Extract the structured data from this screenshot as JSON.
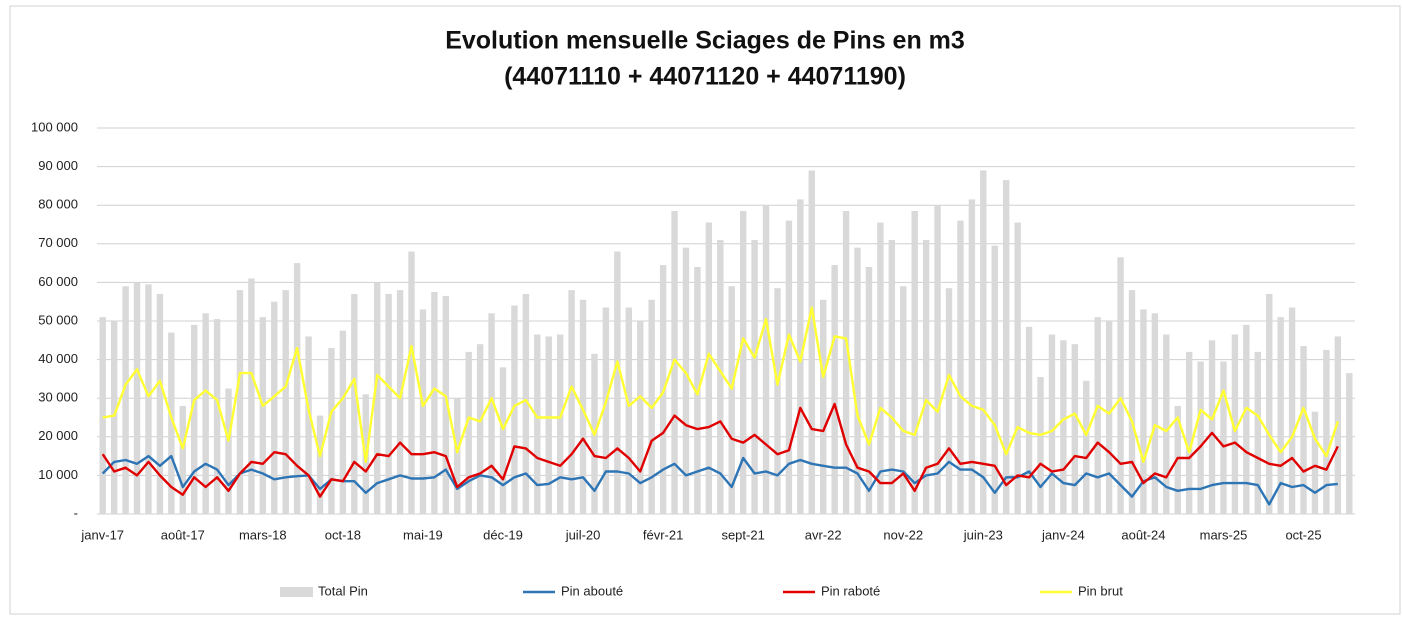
{
  "chart_data": {
    "type": "bar",
    "title": "Evolution mensuelle Sciages de Pins en m3",
    "subtitle": "(44071110 + 44071120 + 44071190)",
    "categories": [
      "janv-17",
      null,
      null,
      null,
      null,
      null,
      null,
      "août-17",
      null,
      null,
      null,
      null,
      null,
      null,
      "mars-18",
      null,
      null,
      null,
      null,
      null,
      null,
      "oct-18",
      null,
      null,
      null,
      null,
      null,
      null,
      "mai-19",
      null,
      null,
      null,
      null,
      null,
      null,
      "déc-19",
      null,
      null,
      null,
      null,
      null,
      null,
      "juil-20",
      null,
      null,
      null,
      null,
      null,
      null,
      "févr-21",
      null,
      null,
      null,
      null,
      null,
      null,
      "sept-21",
      null,
      null,
      null,
      null,
      null,
      null,
      "avr-22",
      null,
      null,
      null,
      null,
      null,
      null,
      "nov-22",
      null,
      null,
      null,
      null,
      null,
      null,
      "juin-23",
      null,
      null,
      null,
      null,
      null,
      null,
      "janv-24",
      null,
      null,
      null,
      null,
      null,
      null,
      "août-24",
      null,
      null,
      null,
      null,
      null,
      null,
      "mars-25",
      null,
      null,
      null,
      null,
      null,
      null,
      "oct-25",
      null,
      null,
      null,
      null
    ],
    "ylim": [
      0,
      100000
    ],
    "yticks": [
      {
        "value": 0,
        "label": "-"
      },
      {
        "value": 10000,
        "label": "10 000"
      },
      {
        "value": 20000,
        "label": "20 000"
      },
      {
        "value": 30000,
        "label": "30 000"
      },
      {
        "value": 40000,
        "label": "40 000"
      },
      {
        "value": 50000,
        "label": "50 000"
      },
      {
        "value": 60000,
        "label": "60 000"
      },
      {
        "value": 70000,
        "label": "70 000"
      },
      {
        "value": 80000,
        "label": "80 000"
      },
      {
        "value": 90000,
        "label": "90 000"
      },
      {
        "value": 100000,
        "label": "100 000"
      }
    ],
    "grid": true,
    "legend": "bottom",
    "series": [
      {
        "name": "Total Pin",
        "type": "bar",
        "color": "#d9d9d9",
        "values": [
          51000,
          50000,
          59000,
          60000,
          59500,
          57000,
          47000,
          28000,
          49000,
          52000,
          50500,
          32500,
          58000,
          61000,
          51000,
          55000,
          58000,
          65000,
          46000,
          25500,
          43000,
          47500,
          57000,
          31000,
          60000,
          57000,
          58000,
          68000,
          53000,
          57500,
          56500,
          30000,
          42000,
          44000,
          52000,
          38000,
          54000,
          57000,
          46500,
          46000,
          46500,
          58000,
          55500,
          41500,
          53500,
          68000,
          53500,
          50000,
          55500,
          64500,
          78500,
          69000,
          64000,
          75500,
          71000,
          59000,
          78500,
          71000,
          80000,
          58500,
          76000,
          81500,
          89000,
          55500,
          64500,
          78500,
          69000,
          64000,
          75500,
          71000,
          59000,
          78500,
          71000,
          80000,
          58500,
          76000,
          81500,
          89000,
          69500,
          86500,
          75500,
          48500,
          35500,
          46500,
          45000,
          44000,
          34500,
          51000,
          50000,
          66500,
          58000,
          53000,
          52000,
          46500,
          28000,
          42000,
          39500,
          45000,
          39500,
          46500,
          49000,
          42000,
          57000,
          51000,
          53500,
          43500,
          26500,
          42500,
          46000,
          36500
        ]
      },
      {
        "name": "Pin abouté",
        "type": "line",
        "color": "#2e75b6",
        "values": [
          10500,
          13500,
          14000,
          13000,
          15000,
          12500,
          15000,
          7000,
          11000,
          13000,
          11500,
          7500,
          10500,
          11500,
          10500,
          9000,
          9500,
          9800,
          10000,
          6500,
          9000,
          8500,
          8500,
          5500,
          8000,
          9000,
          10000,
          9200,
          9200,
          9500,
          11500,
          6500,
          8500,
          10000,
          9500,
          7500,
          9500,
          10500,
          7500,
          7800,
          9500,
          9000,
          9500,
          6000,
          11000,
          11000,
          10500,
          8000,
          9500,
          11500,
          13000,
          10000,
          11000,
          12000,
          10500,
          7000,
          14500,
          10500,
          11000,
          10000,
          13000,
          14000,
          13000,
          12500,
          12000,
          12000,
          10500,
          6000,
          11000,
          11500,
          11000,
          8000,
          10000,
          10500,
          13500,
          11500,
          11500,
          9500,
          5500,
          9500,
          9500,
          11000,
          7000,
          10500,
          8000,
          7500,
          10500,
          9500,
          10500,
          7500,
          4500,
          8500,
          9500,
          7000,
          6000,
          6500,
          6500,
          7500,
          8000,
          8000,
          8000,
          7500,
          2500,
          8000,
          7000,
          7500,
          5500,
          7500,
          7800,
          null
        ]
      },
      {
        "name": "Pin raboté",
        "type": "line",
        "color": "#e00000",
        "values": [
          15500,
          11000,
          12000,
          10000,
          13500,
          10000,
          7000,
          5000,
          9500,
          7000,
          9500,
          6000,
          10500,
          13500,
          13000,
          16000,
          15500,
          12500,
          10000,
          4500,
          9000,
          8500,
          13500,
          11000,
          15500,
          15000,
          18500,
          15500,
          15500,
          16000,
          15000,
          7000,
          9500,
          10500,
          12500,
          9000,
          17500,
          17000,
          14500,
          13500,
          12500,
          15500,
          19500,
          15000,
          14500,
          17000,
          14500,
          11000,
          19000,
          21000,
          25500,
          23000,
          22000,
          22500,
          24000,
          19500,
          18500,
          20500,
          18000,
          15500,
          16500,
          27500,
          22000,
          21500,
          28500,
          18000,
          12000,
          11000,
          8000,
          8000,
          10500,
          6000,
          12000,
          13000,
          17000,
          13000,
          13500,
          13000,
          12500,
          7500,
          10000,
          9500,
          13000,
          11000,
          11500,
          15000,
          14500,
          18500,
          16000,
          13000,
          13500,
          8000,
          10500,
          9500,
          14500,
          14500,
          17500,
          21000,
          17500,
          18500,
          16000,
          14500,
          13000,
          12500,
          14500,
          11000,
          12500,
          11500,
          17500,
          null
        ]
      },
      {
        "name": "Pin brut",
        "type": "line",
        "color": "#ffff33",
        "values": [
          25000,
          25500,
          33500,
          37500,
          30500,
          34500,
          25000,
          17000,
          29500,
          32000,
          29500,
          19000,
          36500,
          36500,
          28000,
          30500,
          33000,
          43000,
          27000,
          15000,
          26500,
          30000,
          35000,
          13500,
          36000,
          33000,
          30000,
          43500,
          28000,
          32500,
          30500,
          16000,
          25000,
          24000,
          30000,
          22000,
          28000,
          29500,
          25000,
          25000,
          25000,
          33000,
          27000,
          20500,
          29000,
          39500,
          28000,
          30500,
          27500,
          31500,
          40000,
          36500,
          31000,
          41500,
          37000,
          32500,
          45500,
          40500,
          50500,
          33500,
          46500,
          39500,
          53500,
          35500,
          46000,
          45500,
          25500,
          18000,
          27500,
          25000,
          21500,
          20500,
          29500,
          26500,
          36000,
          30500,
          28000,
          27000,
          23000,
          15500,
          22500,
          21000,
          20500,
          21500,
          24500,
          26000,
          20500,
          28000,
          26000,
          30000,
          24000,
          13500,
          23000,
          21500,
          25000,
          16000,
          27000,
          24500,
          32000,
          21500,
          27500,
          25500,
          20500,
          16000,
          20000,
          27500,
          19500,
          15000,
          24000,
          null
        ]
      }
    ]
  }
}
